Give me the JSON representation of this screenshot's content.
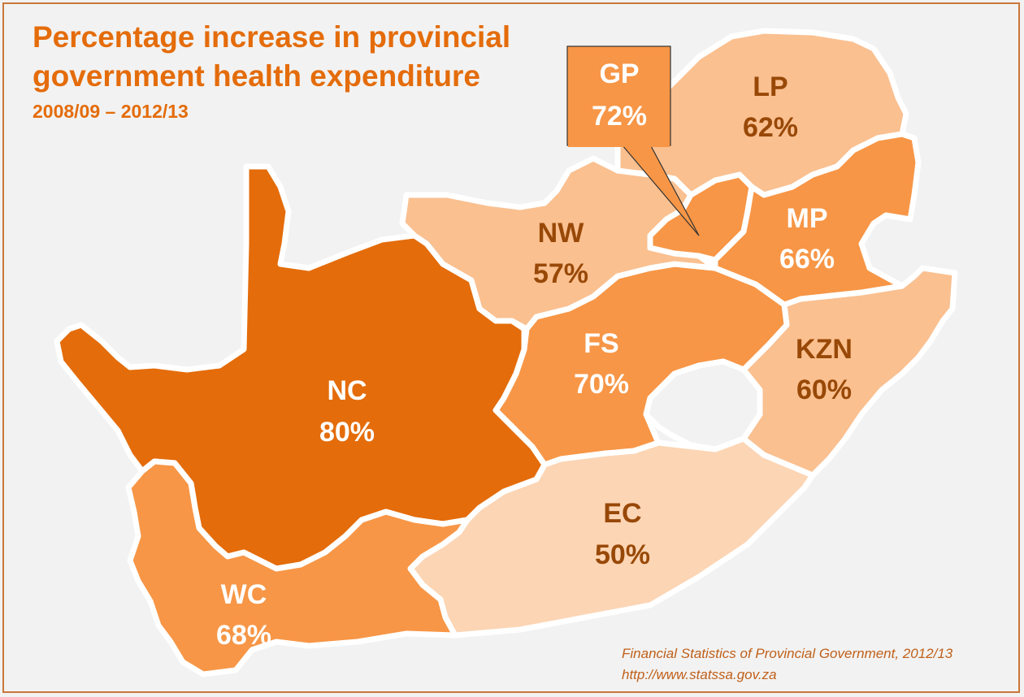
{
  "title_line1": "Percentage increase in provincial",
  "title_line2": "government health expenditure",
  "subtitle": "2008/09 – 2012/13",
  "source_line1": "Financial Statistics of Provincial Government,  2012/13",
  "source_line2": "http://www.statssa.gov.za",
  "colors": {
    "title": "#e46c0a",
    "highest": "#e46c0a",
    "high": "#f79646",
    "mid": "#fac090",
    "low": "#fcd5b4",
    "dark_label": "#984807",
    "light_label": "#ffffff",
    "border": "#ffffff"
  },
  "provinces": [
    {
      "code": "NC",
      "value": "80%",
      "percent": 80
    },
    {
      "code": "GP",
      "value": "72%",
      "percent": 72
    },
    {
      "code": "FS",
      "value": "70%",
      "percent": 70
    },
    {
      "code": "WC",
      "value": "68%",
      "percent": 68
    },
    {
      "code": "MP",
      "value": "66%",
      "percent": 66
    },
    {
      "code": "LP",
      "value": "62%",
      "percent": 62
    },
    {
      "code": "KZN",
      "value": "60%",
      "percent": 60
    },
    {
      "code": "NW",
      "value": "57%",
      "percent": 57
    },
    {
      "code": "EC",
      "value": "50%",
      "percent": 50
    }
  ]
}
